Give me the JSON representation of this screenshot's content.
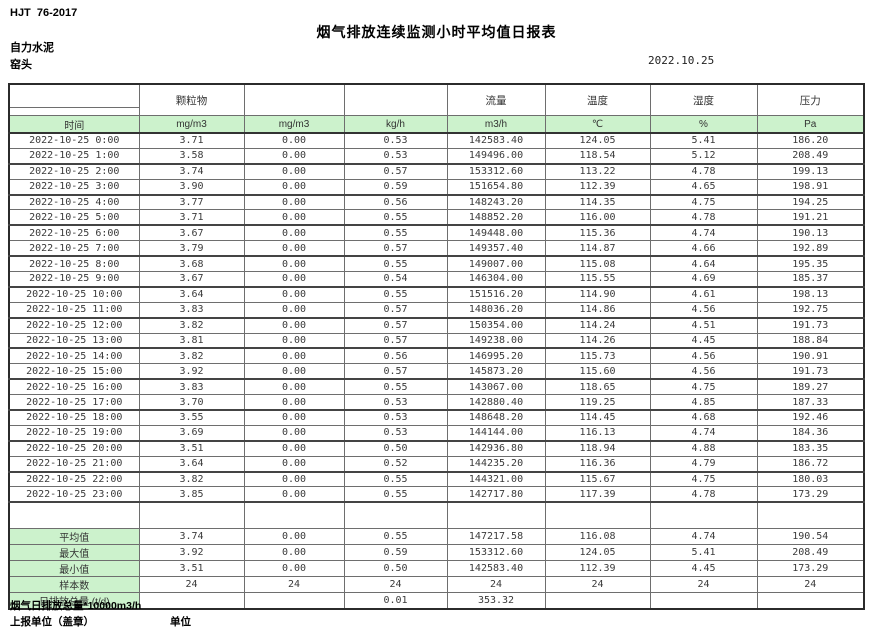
{
  "doc": {
    "standard": "HJT  76-2017",
    "title": "烟气排放连续监测小时平均值日报表",
    "company": "自力水泥",
    "location": "窑头",
    "date": "2022.10.25"
  },
  "colors": {
    "highlight_green": "#ccf2cc",
    "grid_line": "#6e6e6e"
  },
  "table": {
    "group_headers": [
      "",
      "颗粒物",
      "",
      "",
      "流量",
      "温度",
      "湿度",
      "压力"
    ],
    "unit_row": [
      "时间",
      "mg/m3",
      "mg/m3",
      "kg/h",
      "m3/h",
      "℃",
      "%",
      "Pa"
    ],
    "rows": [
      [
        "2022-10-25 0:00",
        "3.71",
        "0.00",
        "0.53",
        "142583.40",
        "124.05",
        "5.41",
        "186.20"
      ],
      [
        "2022-10-25 1:00",
        "3.58",
        "0.00",
        "0.53",
        "149496.00",
        "118.54",
        "5.12",
        "208.49"
      ],
      [
        "2022-10-25 2:00",
        "3.74",
        "0.00",
        "0.57",
        "153312.60",
        "113.22",
        "4.78",
        "199.13"
      ],
      [
        "2022-10-25 3:00",
        "3.90",
        "0.00",
        "0.59",
        "151654.80",
        "112.39",
        "4.65",
        "198.91"
      ],
      [
        "2022-10-25 4:00",
        "3.77",
        "0.00",
        "0.56",
        "148243.20",
        "114.35",
        "4.75",
        "194.25"
      ],
      [
        "2022-10-25 5:00",
        "3.71",
        "0.00",
        "0.55",
        "148852.20",
        "116.00",
        "4.78",
        "191.21"
      ],
      [
        "2022-10-25 6:00",
        "3.67",
        "0.00",
        "0.55",
        "149448.00",
        "115.36",
        "4.74",
        "190.13"
      ],
      [
        "2022-10-25 7:00",
        "3.79",
        "0.00",
        "0.57",
        "149357.40",
        "114.87",
        "4.66",
        "192.89"
      ],
      [
        "2022-10-25 8:00",
        "3.68",
        "0.00",
        "0.55",
        "149007.00",
        "115.08",
        "4.64",
        "195.35"
      ],
      [
        "2022-10-25 9:00",
        "3.67",
        "0.00",
        "0.54",
        "146304.00",
        "115.55",
        "4.69",
        "185.37"
      ],
      [
        "2022-10-25 10:00",
        "3.64",
        "0.00",
        "0.55",
        "151516.20",
        "114.90",
        "4.61",
        "198.13"
      ],
      [
        "2022-10-25 11:00",
        "3.83",
        "0.00",
        "0.57",
        "148036.20",
        "114.86",
        "4.56",
        "192.75"
      ],
      [
        "2022-10-25 12:00",
        "3.82",
        "0.00",
        "0.57",
        "150354.00",
        "114.24",
        "4.51",
        "191.73"
      ],
      [
        "2022-10-25 13:00",
        "3.81",
        "0.00",
        "0.57",
        "149238.00",
        "114.26",
        "4.45",
        "188.84"
      ],
      [
        "2022-10-25 14:00",
        "3.82",
        "0.00",
        "0.56",
        "146995.20",
        "115.73",
        "4.56",
        "190.91"
      ],
      [
        "2022-10-25 15:00",
        "3.92",
        "0.00",
        "0.57",
        "145873.20",
        "115.60",
        "4.56",
        "191.73"
      ],
      [
        "2022-10-25 16:00",
        "3.83",
        "0.00",
        "0.55",
        "143067.00",
        "118.65",
        "4.75",
        "189.27"
      ],
      [
        "2022-10-25 17:00",
        "3.70",
        "0.00",
        "0.53",
        "142880.40",
        "119.25",
        "4.85",
        "187.33"
      ],
      [
        "2022-10-25 18:00",
        "3.55",
        "0.00",
        "0.53",
        "148648.20",
        "114.45",
        "4.68",
        "192.46"
      ],
      [
        "2022-10-25 19:00",
        "3.69",
        "0.00",
        "0.53",
        "144144.00",
        "116.13",
        "4.74",
        "184.36"
      ],
      [
        "2022-10-25 20:00",
        "3.51",
        "0.00",
        "0.50",
        "142936.80",
        "118.94",
        "4.88",
        "183.35"
      ],
      [
        "2022-10-25 21:00",
        "3.64",
        "0.00",
        "0.52",
        "144235.20",
        "116.36",
        "4.79",
        "186.72"
      ],
      [
        "2022-10-25 22:00",
        "3.82",
        "0.00",
        "0.55",
        "144321.00",
        "115.67",
        "4.75",
        "180.03"
      ],
      [
        "2022-10-25 23:00",
        "3.85",
        "0.00",
        "0.55",
        "142717.80",
        "117.39",
        "4.78",
        "173.29"
      ]
    ],
    "summary": [
      {
        "label": "平均值",
        "values": [
          "3.74",
          "0.00",
          "0.55",
          "147217.58",
          "116.08",
          "4.74",
          "190.54"
        ]
      },
      {
        "label": "最大值",
        "values": [
          "3.92",
          "0.00",
          "0.59",
          "153312.60",
          "124.05",
          "5.41",
          "208.49"
        ]
      },
      {
        "label": "最小值",
        "values": [
          "3.51",
          "0.00",
          "0.50",
          "142583.40",
          "112.39",
          "4.45",
          "173.29"
        ]
      },
      {
        "label": "样本数",
        "values": [
          "24",
          "24",
          "24",
          "24",
          "24",
          "24",
          "24"
        ]
      },
      {
        "label": "日排放总量 (t/d)",
        "values": [
          "",
          "",
          "0.01",
          "353.32",
          "",
          "",
          ""
        ]
      }
    ]
  },
  "footer": {
    "note1": "烟气日排放总量*10000m3/h",
    "note2": "上报单位（盖章）",
    "note3": "单位"
  }
}
